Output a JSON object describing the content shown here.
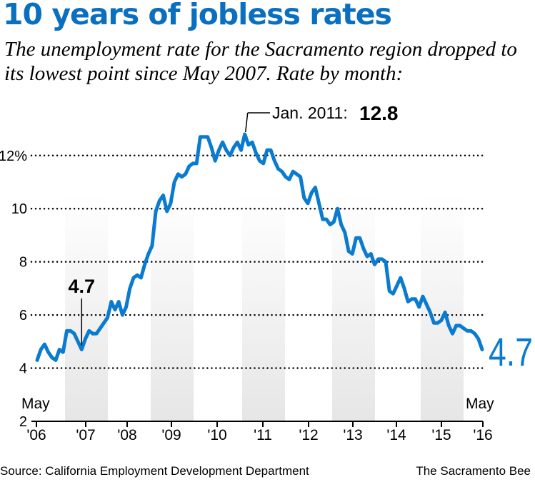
{
  "header": {
    "title": "10 years of jobless rates",
    "subtitle": "The unemployment rate for the Sacramento region dropped to its lowest point since May 2007. Rate by month:"
  },
  "footer": {
    "source": "Source: California Employment Development Department",
    "credit": "The Sacramento Bee"
  },
  "colors": {
    "line": "#0b7bd0",
    "headline": "#0b6fc0",
    "band": "#e6e6e6"
  },
  "chart_data": {
    "type": "line",
    "title": "10 years of jobless rates",
    "y_tick_labels": [
      "2",
      "4",
      "6",
      "8",
      "10",
      "12%"
    ],
    "y_ticks": [
      2,
      4,
      6,
      8,
      10,
      12
    ],
    "ylim": [
      2,
      12.8
    ],
    "x_tick_labels": [
      "'06",
      "'07",
      "'08",
      "'09",
      "'10",
      "'11",
      "'12",
      "'13",
      "'14",
      "'15",
      "'16"
    ],
    "x_start_label": "May",
    "x_end_label": "May",
    "grid": "dotted horizontal",
    "shaded_years": [
      "'07",
      "'09",
      "'11",
      "'13",
      "'15"
    ],
    "series": [
      {
        "values": [
          4.3,
          4.7,
          4.9,
          4.6,
          4.4,
          4.3,
          4.7,
          4.6,
          5.4,
          5.4,
          5.3,
          5.0,
          4.7,
          5.1,
          5.4,
          5.3,
          5.3,
          5.5,
          5.7,
          5.9,
          6.5,
          6.2,
          6.5,
          6.0,
          6.3,
          7.0,
          7.4,
          7.5,
          7.4,
          7.9,
          8.3,
          8.6,
          9.9,
          10.3,
          10.5,
          9.9,
          10.2,
          11.0,
          11.3,
          11.2,
          11.3,
          11.6,
          11.7,
          11.7,
          12.7,
          12.7,
          12.7,
          12.3,
          11.8,
          12.2,
          12.5,
          12.2,
          12.0,
          12.3,
          12.5,
          12.2,
          12.8,
          12.4,
          12.5,
          12.1,
          11.8,
          11.7,
          12.2,
          12.2,
          11.8,
          11.5,
          11.4,
          11.2,
          11.1,
          11.4,
          11.3,
          11.2,
          10.4,
          10.2,
          10.6,
          10.8,
          10.2,
          9.6,
          9.6,
          9.4,
          9.5,
          10.0,
          9.4,
          9.1,
          8.4,
          8.3,
          8.9,
          8.9,
          8.5,
          8.2,
          8.3,
          7.9,
          8.1,
          8.1,
          8.0,
          6.9,
          6.8,
          7.1,
          7.4,
          7.0,
          6.5,
          6.6,
          6.6,
          6.3,
          6.7,
          6.4,
          6.1,
          5.7,
          5.7,
          5.8,
          6.1,
          5.6,
          5.3,
          5.6,
          5.6,
          5.5,
          5.4,
          5.4,
          5.3,
          5.1,
          4.7
        ]
      }
    ],
    "annotations": [
      {
        "label": "4.7",
        "point_index": 12
      },
      {
        "label": "Jan. 2011: ",
        "value_label": "12.8",
        "point_index": 56
      },
      {
        "label": "4.7",
        "point_index": 120
      }
    ]
  }
}
